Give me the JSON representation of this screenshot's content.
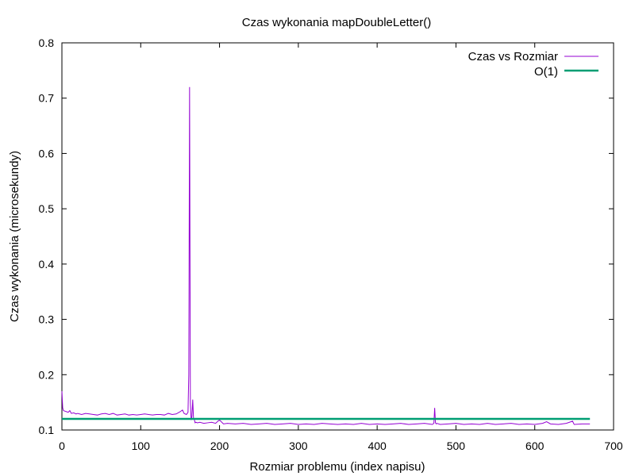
{
  "chart_data": {
    "type": "line",
    "title": "Czas wykonania mapDoubleLetter()",
    "xlabel": "Rozmiar problemu (index napisu)",
    "ylabel": "Czas wykonania (microsekundy)",
    "xlim": [
      0,
      700
    ],
    "ylim": [
      0.1,
      0.8
    ],
    "xticks": [
      0,
      100,
      200,
      300,
      400,
      500,
      600,
      700
    ],
    "yticks": [
      0.1,
      0.2,
      0.3,
      0.4,
      0.5,
      0.6,
      0.7,
      0.8
    ],
    "grid": false,
    "legend_position": "top-right",
    "series": [
      {
        "name": "Czas vs Rozmiar",
        "color": "#9400d3",
        "x": [
          0,
          1,
          2,
          4,
          6,
          8,
          10,
          12,
          15,
          18,
          20,
          25,
          30,
          35,
          40,
          45,
          50,
          55,
          60,
          65,
          70,
          75,
          80,
          85,
          90,
          95,
          100,
          105,
          110,
          115,
          120,
          125,
          130,
          135,
          140,
          145,
          150,
          153,
          155,
          158,
          160,
          161,
          162,
          163,
          164,
          165,
          166,
          167,
          168,
          169,
          170,
          172,
          175,
          180,
          185,
          190,
          195,
          198,
          200,
          205,
          210,
          220,
          230,
          240,
          250,
          260,
          270,
          280,
          290,
          300,
          310,
          320,
          330,
          340,
          350,
          360,
          370,
          380,
          390,
          400,
          410,
          420,
          430,
          440,
          450,
          460,
          470,
          472,
          473,
          474,
          475,
          476,
          480,
          490,
          500,
          510,
          520,
          530,
          540,
          550,
          560,
          570,
          580,
          590,
          600,
          610,
          615,
          620,
          630,
          640,
          648,
          650,
          660,
          670
        ],
        "y": [
          0.17,
          0.14,
          0.135,
          0.134,
          0.133,
          0.132,
          0.135,
          0.13,
          0.131,
          0.129,
          0.13,
          0.128,
          0.13,
          0.129,
          0.128,
          0.127,
          0.129,
          0.13,
          0.128,
          0.13,
          0.127,
          0.128,
          0.129,
          0.127,
          0.128,
          0.127,
          0.128,
          0.129,
          0.128,
          0.127,
          0.128,
          0.128,
          0.127,
          0.13,
          0.128,
          0.129,
          0.133,
          0.136,
          0.13,
          0.128,
          0.132,
          0.2,
          0.72,
          0.15,
          0.118,
          0.125,
          0.155,
          0.12,
          0.119,
          0.113,
          0.114,
          0.113,
          0.114,
          0.112,
          0.113,
          0.114,
          0.112,
          0.116,
          0.118,
          0.111,
          0.112,
          0.111,
          0.112,
          0.11,
          0.111,
          0.112,
          0.11,
          0.111,
          0.112,
          0.11,
          0.111,
          0.11,
          0.112,
          0.111,
          0.11,
          0.111,
          0.11,
          0.112,
          0.11,
          0.111,
          0.11,
          0.111,
          0.112,
          0.11,
          0.111,
          0.112,
          0.11,
          0.112,
          0.14,
          0.113,
          0.111,
          0.112,
          0.11,
          0.111,
          0.112,
          0.11,
          0.111,
          0.11,
          0.112,
          0.11,
          0.111,
          0.112,
          0.11,
          0.111,
          0.11,
          0.112,
          0.115,
          0.111,
          0.11,
          0.112,
          0.116,
          0.11,
          0.111,
          0.111
        ]
      },
      {
        "name": "O(1)",
        "color": "#009e73",
        "x": [
          0,
          670
        ],
        "y": [
          0.12,
          0.12
        ]
      }
    ]
  }
}
